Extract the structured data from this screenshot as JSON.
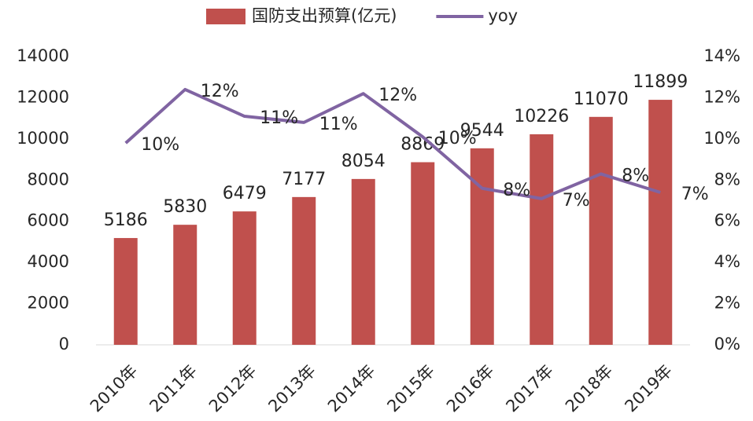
{
  "chart_data": {
    "type": "bar",
    "categories": [
      "2010年",
      "2011年",
      "2012年",
      "2013年",
      "2014年",
      "2015年",
      "2016年",
      "2017年",
      "2018年",
      "2019年"
    ],
    "series": [
      {
        "name": "国防支出预算(亿元)",
        "type": "bar",
        "color": "#c0504d",
        "values": [
          5186,
          5830,
          6479,
          7177,
          8054,
          8869,
          9544,
          10226,
          11070,
          11899
        ]
      },
      {
        "name": "yoy",
        "type": "line",
        "axis": "y2",
        "color": "#8064a2",
        "values": [
          9.8,
          12.4,
          11.1,
          10.8,
          12.2,
          10.1,
          7.6,
          7.1,
          8.3,
          7.4
        ],
        "value_labels": [
          "10%",
          "12%",
          "11%",
          "11%",
          "12%",
          "10%",
          "8%",
          "7%",
          "8%",
          "7%"
        ]
      }
    ],
    "ylim": [
      0,
      14000
    ],
    "yticks": [
      0,
      2000,
      4000,
      6000,
      8000,
      10000,
      12000,
      14000
    ],
    "y2lim": [
      0,
      14
    ],
    "y2ticks": [
      {
        "value": 0,
        "label": "0%"
      },
      {
        "value": 2,
        "label": "2%"
      },
      {
        "value": 4,
        "label": "4%"
      },
      {
        "value": 6,
        "label": "6%"
      },
      {
        "value": 8,
        "label": "8%"
      },
      {
        "value": 10,
        "label": "10%"
      },
      {
        "value": 12,
        "label": "12%"
      },
      {
        "value": 14,
        "label": "14%"
      }
    ],
    "legend": "top"
  }
}
